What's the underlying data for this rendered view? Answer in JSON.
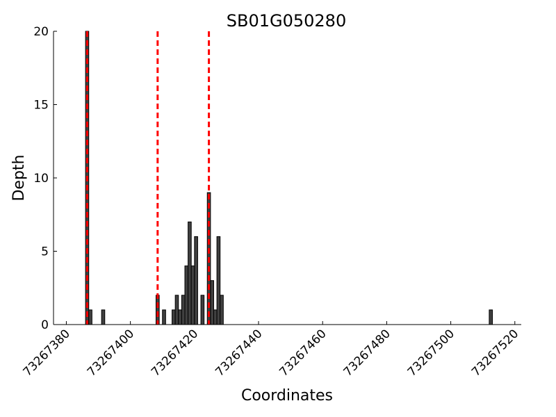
{
  "chart_data": {
    "type": "bar",
    "title": "SB01G050280",
    "x_label": "Coordinates",
    "y_label": "Depth",
    "x": [
      73267386,
      73267387,
      73267391,
      73267408,
      73267410,
      73267413,
      73267414,
      73267415,
      73267416,
      73267417,
      73267418,
      73267419,
      73267420,
      73267422,
      73267424,
      73267425,
      73267426,
      73267427,
      73267428,
      73267512
    ],
    "values": [
      20,
      1,
      1,
      2,
      1,
      1,
      2,
      1,
      2,
      4,
      7,
      4,
      6,
      2,
      9,
      3,
      1,
      6,
      2,
      1
    ],
    "color": "#404040",
    "vlines": [
      73267386.5,
      73267408.5,
      73267424.5
    ],
    "vline_color": "#ff0000",
    "xlim": [
      73267376,
      73267522
    ],
    "xticks": [
      73267380,
      73267400,
      73267420,
      73267440,
      73267460,
      73267480,
      73267500,
      73267520
    ],
    "ylim": [
      0,
      20
    ],
    "yticks": [
      0,
      5,
      10,
      15,
      20
    ]
  }
}
